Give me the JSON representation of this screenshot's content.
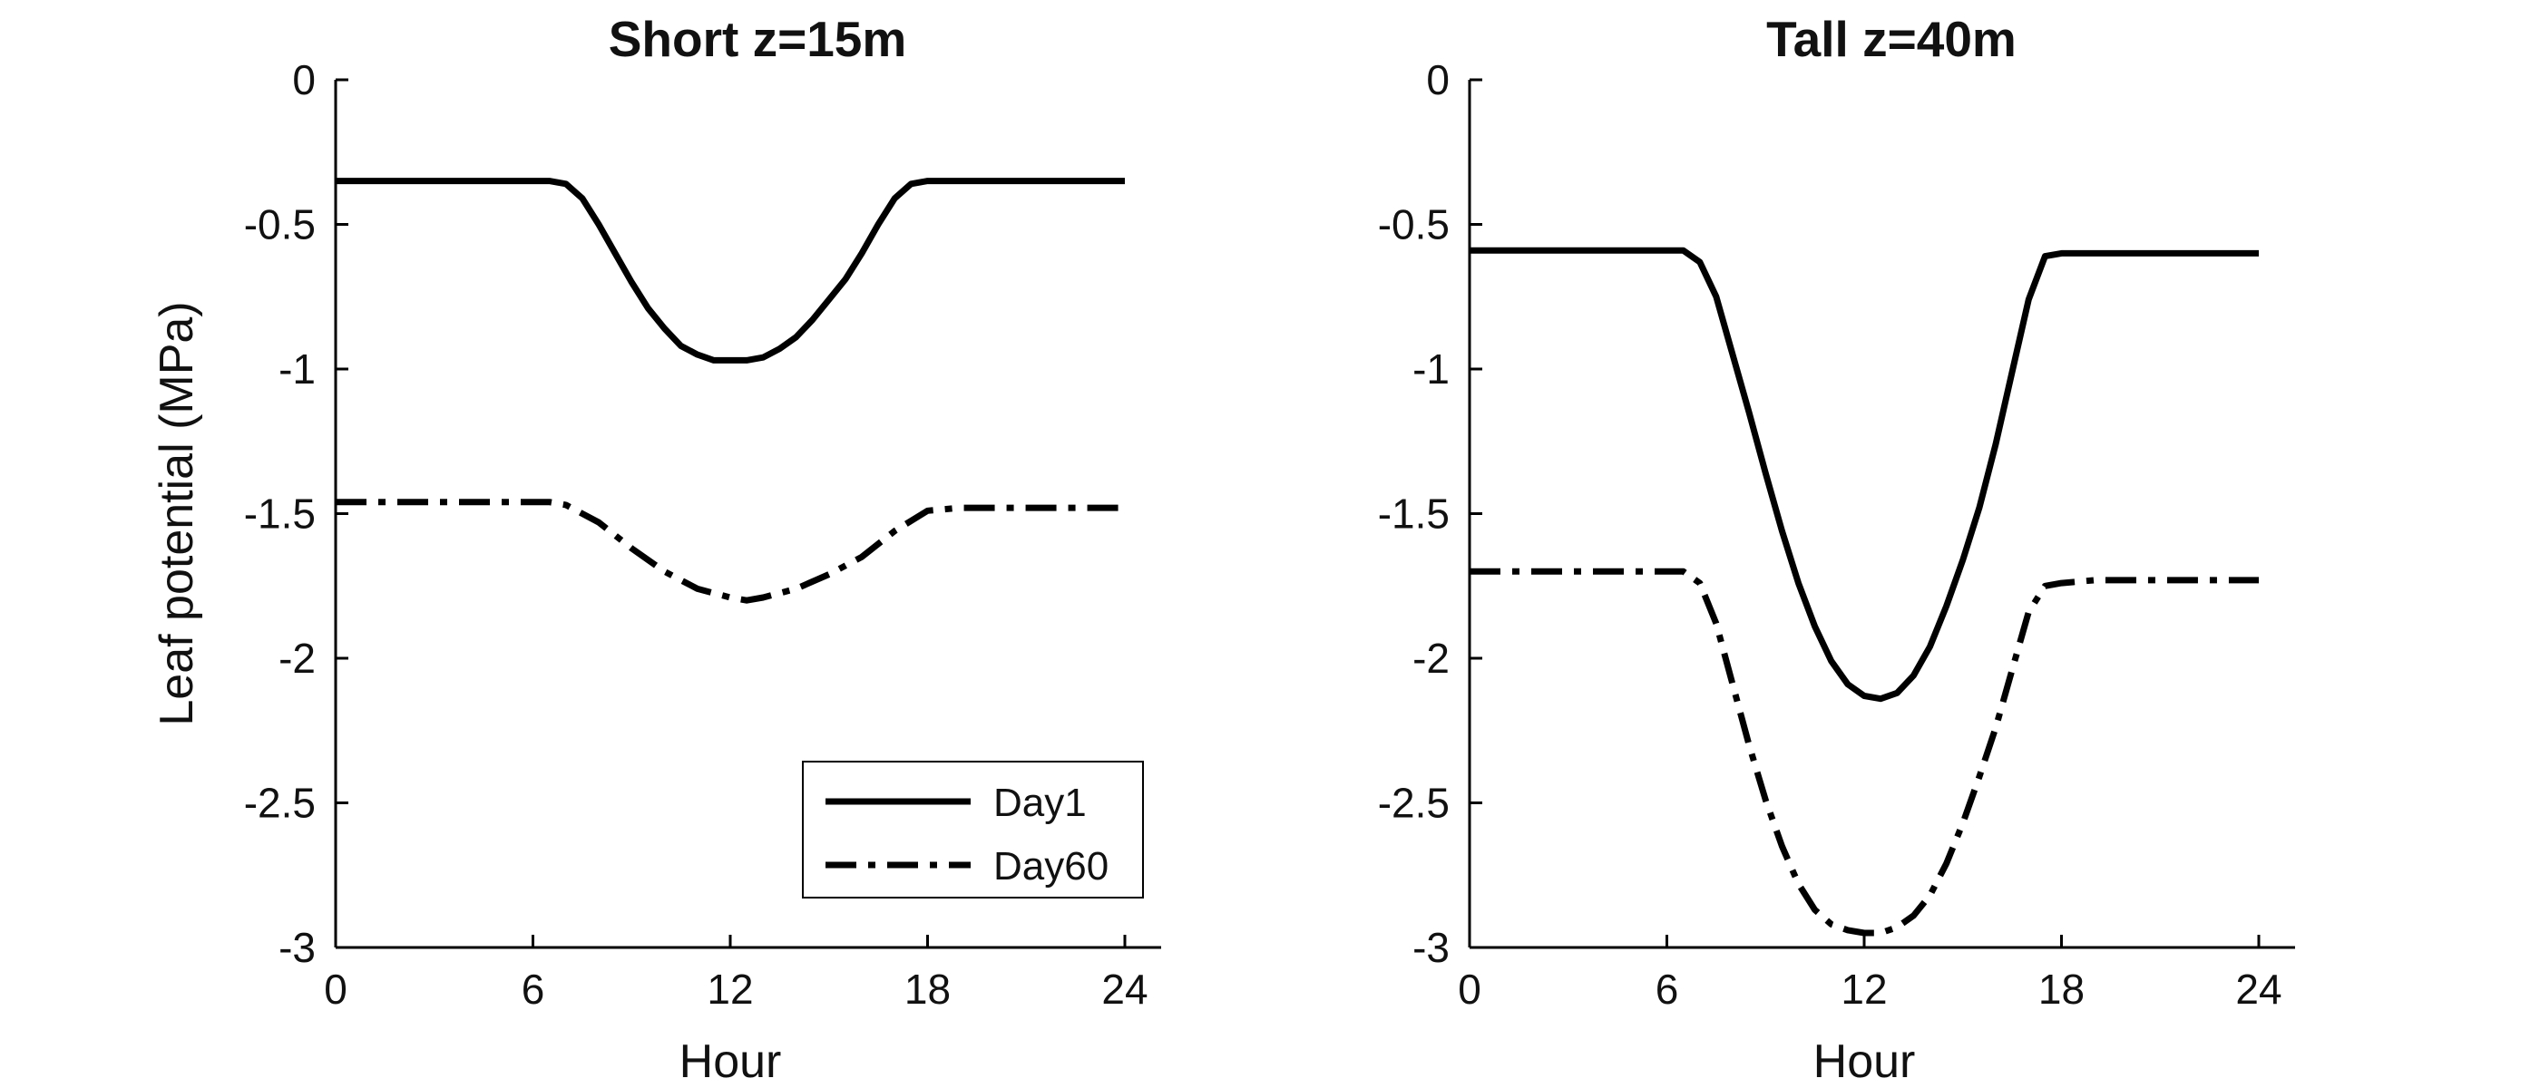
{
  "chart_data": [
    {
      "type": "line",
      "title": "Short z=15m",
      "xlabel": "Hour",
      "ylabel": "Leaf potential (MPa)",
      "xlim": [
        0,
        24
      ],
      "ylim": [
        -3,
        0
      ],
      "xticks": [
        "0",
        "6",
        "12",
        "18",
        "24"
      ],
      "yticks": [
        "0",
        "-0.5",
        "-1",
        "-1.5",
        "-2",
        "-2.5",
        "-3"
      ],
      "legend": {
        "position": "bottom-right",
        "entries": [
          "Day1",
          "Day60"
        ]
      },
      "grid": false,
      "series": [
        {
          "name": "Day1",
          "style": "solid",
          "x": [
            0,
            6.5,
            7,
            7.5,
            8,
            8.5,
            9,
            9.5,
            10,
            10.5,
            11,
            11.5,
            12,
            12.5,
            13,
            13.5,
            14,
            14.5,
            15,
            15.5,
            16,
            16.5,
            17,
            17.5,
            18,
            19,
            24
          ],
          "y": [
            -0.35,
            -0.35,
            -0.36,
            -0.41,
            -0.5,
            -0.6,
            -0.7,
            -0.79,
            -0.86,
            -0.92,
            -0.95,
            -0.97,
            -0.97,
            -0.97,
            -0.96,
            -0.93,
            -0.89,
            -0.83,
            -0.76,
            -0.69,
            -0.6,
            -0.5,
            -0.41,
            -0.36,
            -0.35,
            -0.35,
            -0.35
          ]
        },
        {
          "name": "Day60",
          "style": "dashdot",
          "x": [
            0,
            6.5,
            7,
            8,
            9,
            10,
            11,
            12,
            12.5,
            13,
            14,
            15,
            16,
            17,
            18,
            19,
            24
          ],
          "y": [
            -1.46,
            -1.46,
            -1.47,
            -1.53,
            -1.62,
            -1.7,
            -1.76,
            -1.79,
            -1.8,
            -1.79,
            -1.76,
            -1.71,
            -1.65,
            -1.56,
            -1.49,
            -1.48,
            -1.48
          ]
        }
      ]
    },
    {
      "type": "line",
      "title": "Tall z=40m",
      "xlabel": "Hour",
      "ylabel": "",
      "xlim": [
        0,
        24
      ],
      "ylim": [
        -3,
        0
      ],
      "xticks": [
        "0",
        "6",
        "12",
        "18",
        "24"
      ],
      "yticks": [
        "0",
        "-0.5",
        "-1",
        "-1.5",
        "-2",
        "-2.5",
        "-3"
      ],
      "grid": false,
      "series": [
        {
          "name": "Day1",
          "style": "solid",
          "x": [
            0,
            6.5,
            7,
            7.5,
            8,
            8.5,
            9,
            9.5,
            10,
            10.5,
            11,
            11.5,
            12,
            12.5,
            13,
            13.5,
            14,
            14.5,
            15,
            15.5,
            16,
            16.5,
            17,
            17.5,
            18,
            19,
            24
          ],
          "y": [
            -0.59,
            -0.59,
            -0.63,
            -0.75,
            -0.95,
            -1.15,
            -1.36,
            -1.56,
            -1.74,
            -1.89,
            -2.01,
            -2.09,
            -2.13,
            -2.14,
            -2.12,
            -2.06,
            -1.96,
            -1.82,
            -1.66,
            -1.48,
            -1.26,
            -1.01,
            -0.76,
            -0.61,
            -0.6,
            -0.6,
            -0.6
          ]
        },
        {
          "name": "Day60",
          "style": "dashdot",
          "x": [
            0,
            6.5,
            7,
            7.5,
            8,
            8.5,
            9,
            9.5,
            10,
            10.5,
            11,
            11.5,
            12,
            12.5,
            13,
            13.5,
            14,
            14.5,
            15,
            15.5,
            16,
            16.5,
            17,
            17.5,
            18,
            19,
            24
          ],
          "y": [
            -1.7,
            -1.7,
            -1.74,
            -1.88,
            -2.09,
            -2.3,
            -2.49,
            -2.65,
            -2.78,
            -2.87,
            -2.92,
            -2.94,
            -2.95,
            -2.95,
            -2.93,
            -2.89,
            -2.82,
            -2.71,
            -2.57,
            -2.41,
            -2.24,
            -2.04,
            -1.84,
            -1.75,
            -1.74,
            -1.73,
            -1.73
          ]
        }
      ]
    }
  ]
}
